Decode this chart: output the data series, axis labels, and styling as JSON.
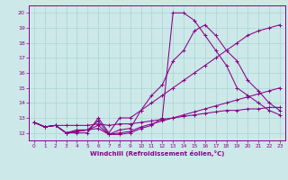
{
  "xlabel": "Windchill (Refroidissement éolien,°C)",
  "bg_color": "#cce8e8",
  "line_color": "#880088",
  "grid_color": "#aad4d4",
  "xlim": [
    -0.5,
    23.5
  ],
  "ylim": [
    11.5,
    20.5
  ],
  "yticks": [
    12,
    13,
    14,
    15,
    16,
    17,
    18,
    19,
    20
  ],
  "xticks": [
    0,
    1,
    2,
    3,
    4,
    5,
    6,
    7,
    8,
    9,
    10,
    11,
    12,
    13,
    14,
    15,
    16,
    17,
    18,
    19,
    20,
    21,
    22,
    23
  ],
  "series": [
    [
      12.7,
      12.4,
      12.5,
      12.5,
      12.5,
      12.5,
      12.6,
      12.5,
      12.6,
      12.6,
      12.7,
      12.8,
      12.9,
      13.0,
      13.1,
      13.2,
      13.3,
      13.4,
      13.5,
      13.5,
      13.6,
      13.6,
      13.7,
      13.7
    ],
    [
      12.7,
      12.4,
      12.5,
      12.0,
      12.1,
      12.2,
      12.3,
      11.9,
      12.0,
      12.1,
      12.4,
      12.6,
      12.8,
      13.0,
      13.2,
      13.4,
      13.6,
      13.8,
      14.0,
      14.2,
      14.4,
      14.6,
      14.8,
      15.0
    ],
    [
      12.7,
      12.4,
      12.5,
      12.0,
      12.0,
      12.0,
      13.0,
      12.0,
      13.0,
      13.0,
      13.5,
      14.0,
      14.5,
      15.0,
      15.5,
      16.0,
      16.5,
      17.0,
      17.5,
      18.0,
      18.5,
      18.8,
      19.0,
      19.2
    ],
    [
      12.7,
      12.4,
      12.5,
      12.0,
      12.2,
      12.2,
      12.5,
      11.9,
      11.9,
      12.0,
      12.3,
      12.5,
      13.0,
      20.0,
      20.0,
      19.5,
      18.5,
      17.5,
      16.5,
      15.0,
      14.5,
      14.0,
      13.5,
      13.2
    ],
    [
      12.7,
      12.4,
      12.5,
      12.0,
      12.1,
      12.2,
      12.8,
      11.9,
      12.2,
      12.3,
      13.5,
      14.5,
      15.2,
      16.8,
      17.5,
      18.8,
      19.2,
      18.5,
      17.5,
      16.8,
      15.5,
      14.8,
      14.0,
      13.5
    ]
  ]
}
